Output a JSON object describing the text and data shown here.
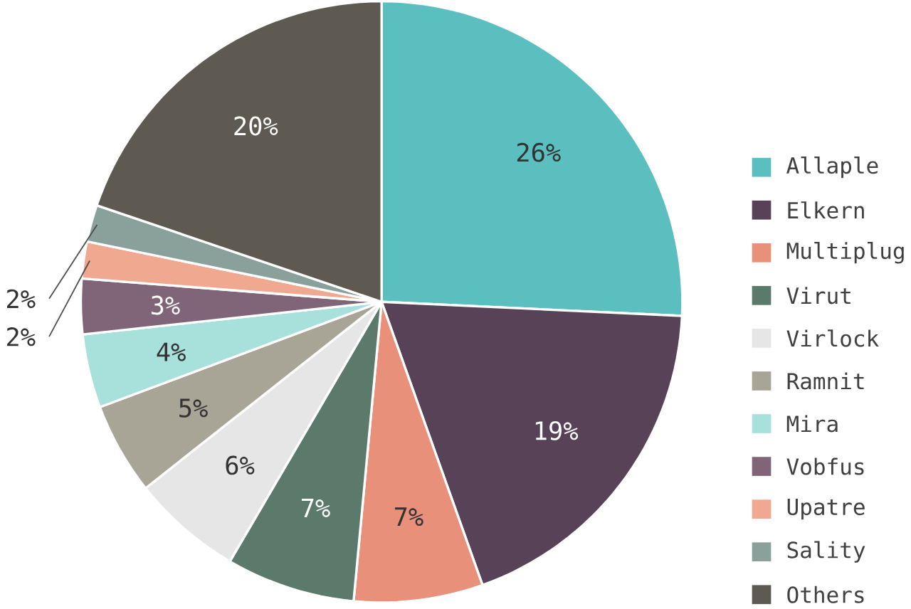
{
  "chart_data": {
    "type": "pie",
    "categories": [
      "Allaple",
      "Elkern",
      "Multiplug",
      "Virut",
      "Virlock",
      "Ramnit",
      "Mira",
      "Vobfus",
      "Upatre",
      "Sality",
      "Others"
    ],
    "values": [
      26,
      19,
      7,
      7,
      6,
      5,
      4,
      3,
      2,
      2,
      20
    ],
    "value_labels": [
      "26%",
      "19%",
      "7%",
      "7%",
      "6%",
      "5%",
      "4%",
      "3%",
      "2%",
      "2%",
      "20%"
    ],
    "colors": [
      "#5bbfbf",
      "#574257",
      "#e8907a",
      "#5c7a6c",
      "#e6e6e6",
      "#a8a496",
      "#a8e0dc",
      "#806478",
      "#f0a890",
      "#8aa09a",
      "#5e5a52"
    ],
    "legend": "right"
  }
}
